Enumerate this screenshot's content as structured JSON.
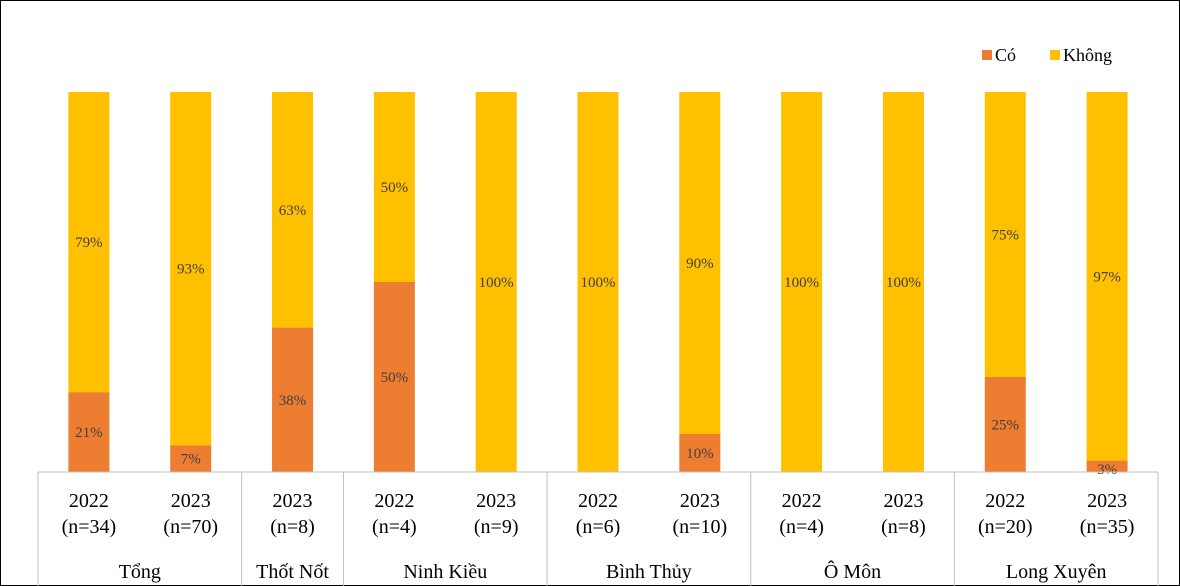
{
  "chart_data": {
    "type": "bar",
    "stacked": true,
    "percent": true,
    "colors": {
      "co": "#ED7D31",
      "khong": "#FFC000"
    },
    "legend": {
      "position": "top-right",
      "items": [
        {
          "key": "co",
          "label": "Có"
        },
        {
          "key": "khong",
          "label": "Không"
        }
      ]
    },
    "ylim": [
      0,
      100
    ],
    "groups": [
      {
        "name": "Tổng",
        "bars": [
          {
            "year": "2022",
            "n": "(n=34)",
            "co": 21,
            "khong": 79
          },
          {
            "year": "2023",
            "n": "(n=70)",
            "co": 7,
            "khong": 93
          }
        ]
      },
      {
        "name": "Thốt Nốt",
        "bars": [
          {
            "year": "2023",
            "n": "(n=8)",
            "co": 38,
            "khong": 63
          }
        ]
      },
      {
        "name": "Ninh Kiều",
        "bars": [
          {
            "year": "2022",
            "n": "(n=4)",
            "co": 50,
            "khong": 50
          },
          {
            "year": "2023",
            "n": "(n=9)",
            "co": 0,
            "khong": 100
          }
        ]
      },
      {
        "name": "Bình Thủy",
        "bars": [
          {
            "year": "2022",
            "n": "(n=6)",
            "co": 0,
            "khong": 100
          },
          {
            "year": "2023",
            "n": "(n=10)",
            "co": 10,
            "khong": 90
          }
        ]
      },
      {
        "name": "Ô Môn",
        "bars": [
          {
            "year": "2022",
            "n": "(n=4)",
            "co": 0,
            "khong": 100
          },
          {
            "year": "2023",
            "n": "(n=8)",
            "co": 0,
            "khong": 100
          }
        ]
      },
      {
        "name": "Long Xuyên",
        "bars": [
          {
            "year": "2022",
            "n": "(n=20)",
            "co": 25,
            "khong": 75
          },
          {
            "year": "2023",
            "n": "(n=35)",
            "co": 3,
            "khong": 97
          }
        ]
      }
    ]
  }
}
